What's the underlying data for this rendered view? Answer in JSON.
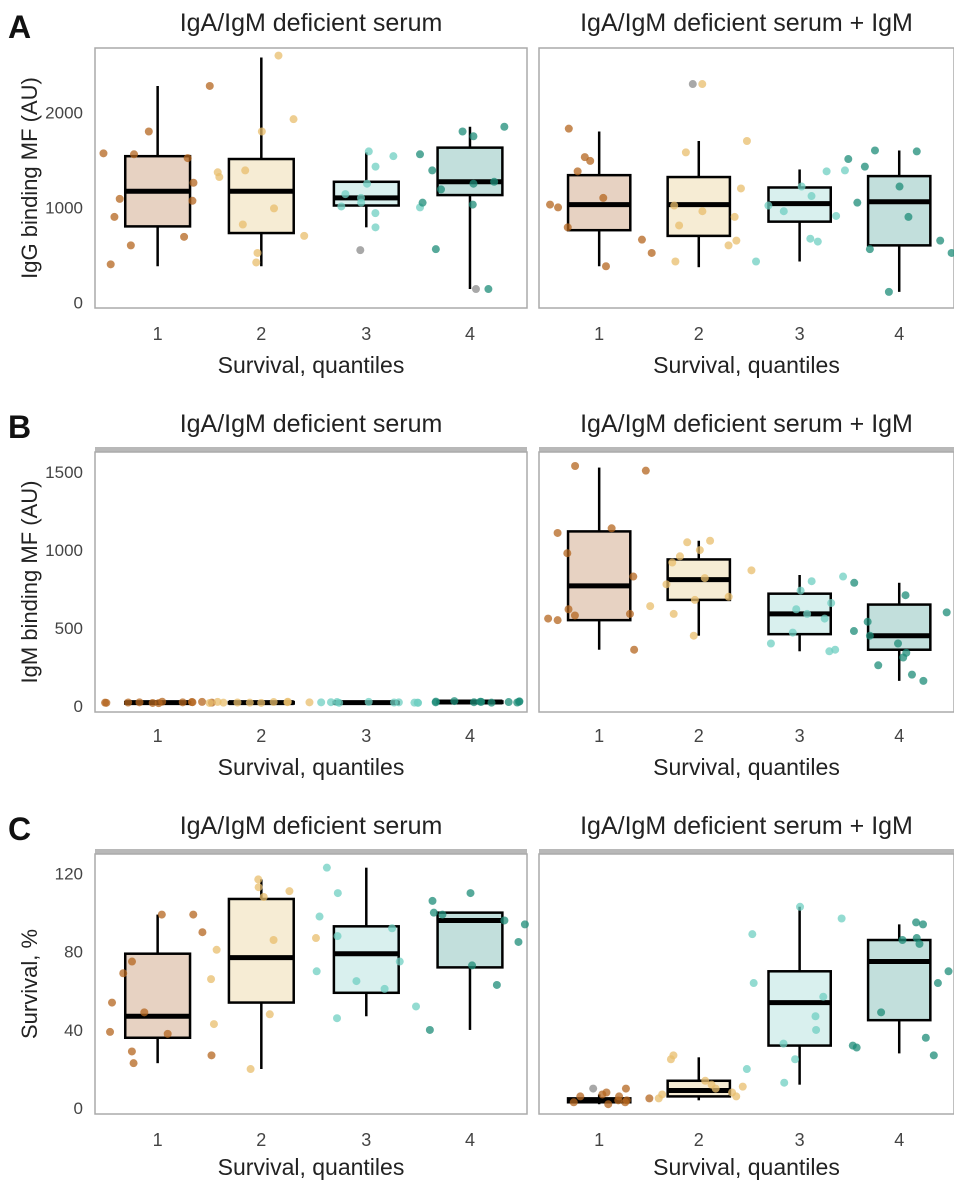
{
  "colors": {
    "q1_fill": "#e7d2c2",
    "q1_point": "#b4651f",
    "q2_fill": "#f6ecd4",
    "q2_point": "#e8bd6c",
    "q3_fill": "#d9f0ee",
    "q3_point": "#6fcfc2",
    "q4_fill": "#c2dfdc",
    "q4_point": "#1e8c78",
    "outlier": "#999999",
    "frame": "#aaaaaa",
    "strip": "#b8b8b8"
  },
  "chart_data": [
    {
      "panel": "A",
      "facet": "IgA/IgM deficient serum",
      "type": "box",
      "categories": [
        "1",
        "2",
        "3",
        "4"
      ],
      "xlabel": "Survival, quantiles",
      "ylabel": "IgG binding MF (AU)",
      "ylim": [
        -60,
        2680
      ],
      "yticks": [
        0,
        1000,
        2000
      ],
      "boxes": [
        {
          "q1": 800,
          "median": 1170,
          "q3": 1540,
          "lo": 380,
          "hi": 2280
        },
        {
          "q1": 730,
          "median": 1170,
          "q3": 1510,
          "lo": 380,
          "hi": 2580
        },
        {
          "q1": 1020,
          "median": 1100,
          "q3": 1270,
          "lo": 790,
          "hi": 1580
        },
        {
          "q1": 1130,
          "median": 1270,
          "q3": 1630,
          "lo": 140,
          "hi": 1850
        }
      ],
      "points": [
        [
          1,
          690
        ],
        [
          1,
          400
        ],
        [
          1,
          1800
        ],
        [
          1,
          1260
        ],
        [
          1,
          1090
        ],
        [
          1,
          1070
        ],
        [
          1,
          900
        ],
        [
          1,
          2280
        ],
        [
          1,
          1560
        ],
        [
          1,
          1520
        ],
        [
          1,
          1570
        ],
        [
          1,
          600
        ],
        [
          2,
          2600
        ],
        [
          2,
          1800
        ],
        [
          2,
          1370
        ],
        [
          2,
          1390
        ],
        [
          2,
          990
        ],
        [
          2,
          420
        ],
        [
          2,
          520
        ],
        [
          2,
          1320
        ],
        [
          2,
          1930
        ],
        [
          2,
          700
        ],
        [
          2,
          820
        ],
        [
          3,
          1250
        ],
        [
          3,
          1430
        ],
        [
          3,
          1010
        ],
        [
          3,
          790
        ],
        [
          3,
          1590
        ],
        [
          3,
          1050
        ],
        [
          3,
          1140
        ],
        [
          3,
          1000
        ],
        [
          3,
          1540
        ],
        [
          3,
          940
        ],
        [
          3,
          1100
        ],
        [
          4,
          1800
        ],
        [
          4,
          1850
        ],
        [
          4,
          1560
        ],
        [
          4,
          1390
        ],
        [
          4,
          1250
        ],
        [
          4,
          1270
        ],
        [
          4,
          560
        ],
        [
          4,
          1030
        ],
        [
          4,
          1050
        ],
        [
          4,
          1750
        ],
        [
          4,
          1190
        ],
        [
          4,
          140
        ]
      ],
      "outliers": [
        [
          3,
          550
        ],
        [
          4,
          140
        ]
      ]
    },
    {
      "panel": "",
      "facet": "IgA/IgM deficient serum + IgM",
      "type": "box",
      "categories": [
        "1",
        "2",
        "3",
        "4"
      ],
      "xlabel": "Survival, quantiles",
      "ylabel": "",
      "ylim": [
        -60,
        2680
      ],
      "yticks": [],
      "boxes": [
        {
          "q1": 760,
          "median": 1030,
          "q3": 1340,
          "lo": 380,
          "hi": 1800
        },
        {
          "q1": 700,
          "median": 1030,
          "q3": 1320,
          "lo": 370,
          "hi": 1700
        },
        {
          "q1": 850,
          "median": 1040,
          "q3": 1210,
          "lo": 430,
          "hi": 1400
        },
        {
          "q1": 600,
          "median": 1060,
          "q3": 1330,
          "lo": 110,
          "hi": 1600
        }
      ],
      "points": [
        [
          1,
          380
        ],
        [
          1,
          1530
        ],
        [
          1,
          1380
        ],
        [
          1,
          1100
        ],
        [
          1,
          1000
        ],
        [
          1,
          1030
        ],
        [
          1,
          660
        ],
        [
          1,
          790
        ],
        [
          1,
          1490
        ],
        [
          1,
          520
        ],
        [
          1,
          1830
        ],
        [
          2,
          2300
        ],
        [
          2,
          1700
        ],
        [
          2,
          1200
        ],
        [
          2,
          1020
        ],
        [
          2,
          960
        ],
        [
          2,
          900
        ],
        [
          2,
          810
        ],
        [
          2,
          650
        ],
        [
          2,
          430
        ],
        [
          2,
          600
        ],
        [
          2,
          1580
        ],
        [
          3,
          1380
        ],
        [
          3,
          1390
        ],
        [
          3,
          1220
        ],
        [
          3,
          1120
        ],
        [
          3,
          960
        ],
        [
          3,
          910
        ],
        [
          3,
          670
        ],
        [
          3,
          430
        ],
        [
          3,
          640
        ],
        [
          3,
          1020
        ],
        [
          4,
          1600
        ],
        [
          4,
          1590
        ],
        [
          4,
          1510
        ],
        [
          4,
          1220
        ],
        [
          4,
          1050
        ],
        [
          4,
          900
        ],
        [
          4,
          560
        ],
        [
          4,
          520
        ],
        [
          4,
          110
        ],
        [
          4,
          650
        ],
        [
          4,
          1430
        ]
      ],
      "outliers": [
        [
          2,
          2300
        ]
      ]
    },
    {
      "panel": "B",
      "facet": "IgA/IgM deficient serum",
      "type": "box",
      "categories": [
        "1",
        "2",
        "3",
        "4"
      ],
      "xlabel": "Survival, quantiles",
      "ylabel": "IgM binding MF (AU)",
      "ylim": [
        -40,
        1630
      ],
      "yticks": [
        0,
        500,
        1000,
        1500
      ],
      "boxes": [
        {
          "q1": 18,
          "median": 20,
          "q3": 24,
          "lo": 10,
          "hi": 30
        },
        {
          "q1": 18,
          "median": 20,
          "q3": 24,
          "lo": 10,
          "hi": 30
        },
        {
          "q1": 18,
          "median": 20,
          "q3": 24,
          "lo": 10,
          "hi": 30
        },
        {
          "q1": 20,
          "median": 24,
          "q3": 28,
          "lo": 12,
          "hi": 34
        }
      ],
      "points": [
        [
          1,
          18
        ],
        [
          1,
          22
        ],
        [
          1,
          25
        ],
        [
          1,
          19
        ],
        [
          1,
          24
        ],
        [
          1,
          20
        ],
        [
          1,
          26
        ],
        [
          1,
          21
        ],
        [
          1,
          17
        ],
        [
          1,
          23
        ],
        [
          1,
          22
        ],
        [
          1,
          20
        ],
        [
          2,
          19
        ],
        [
          2,
          23
        ],
        [
          2,
          20
        ],
        [
          2,
          24
        ],
        [
          2,
          22
        ],
        [
          2,
          21
        ],
        [
          2,
          26
        ],
        [
          2,
          18
        ],
        [
          2,
          25
        ],
        [
          2,
          20
        ],
        [
          3,
          20
        ],
        [
          3,
          22
        ],
        [
          3,
          19
        ],
        [
          3,
          24
        ],
        [
          3,
          21
        ],
        [
          3,
          25
        ],
        [
          3,
          20
        ],
        [
          3,
          23
        ],
        [
          3,
          22
        ],
        [
          3,
          19
        ],
        [
          4,
          22
        ],
        [
          4,
          26
        ],
        [
          4,
          24
        ],
        [
          4,
          28
        ],
        [
          4,
          21
        ],
        [
          4,
          25
        ],
        [
          4,
          27
        ],
        [
          4,
          23
        ],
        [
          4,
          20
        ],
        [
          4,
          30
        ],
        [
          4,
          26
        ]
      ],
      "outliers": []
    },
    {
      "panel": "",
      "facet": "IgA/IgM deficient serum + IgM",
      "type": "box",
      "categories": [
        "1",
        "2",
        "3",
        "4"
      ],
      "xlabel": "Survival, quantiles",
      "ylabel": "",
      "ylim": [
        -40,
        1630
      ],
      "yticks": [],
      "boxes": [
        {
          "q1": 550,
          "median": 770,
          "q3": 1120,
          "lo": 360,
          "hi": 1530
        },
        {
          "q1": 680,
          "median": 810,
          "q3": 940,
          "lo": 450,
          "hi": 1060
        },
        {
          "q1": 460,
          "median": 590,
          "q3": 720,
          "lo": 350,
          "hi": 840
        },
        {
          "q1": 360,
          "median": 450,
          "q3": 650,
          "lo": 160,
          "hi": 790
        }
      ],
      "points": [
        [
          1,
          1540
        ],
        [
          1,
          1510
        ],
        [
          1,
          1140
        ],
        [
          1,
          1110
        ],
        [
          1,
          980
        ],
        [
          1,
          830
        ],
        [
          1,
          590
        ],
        [
          1,
          560
        ],
        [
          1,
          550
        ],
        [
          1,
          580
        ],
        [
          1,
          360
        ],
        [
          1,
          620
        ],
        [
          2,
          1050
        ],
        [
          2,
          1060
        ],
        [
          2,
          1000
        ],
        [
          2,
          960
        ],
        [
          2,
          870
        ],
        [
          2,
          820
        ],
        [
          2,
          780
        ],
        [
          2,
          700
        ],
        [
          2,
          680
        ],
        [
          2,
          640
        ],
        [
          2,
          590
        ],
        [
          2,
          450
        ],
        [
          2,
          920
        ],
        [
          3,
          830
        ],
        [
          3,
          800
        ],
        [
          3,
          740
        ],
        [
          3,
          660
        ],
        [
          3,
          620
        ],
        [
          3,
          590
        ],
        [
          3,
          560
        ],
        [
          3,
          470
        ],
        [
          3,
          400
        ],
        [
          3,
          360
        ],
        [
          3,
          350
        ],
        [
          4,
          790
        ],
        [
          4,
          710
        ],
        [
          4,
          600
        ],
        [
          4,
          540
        ],
        [
          4,
          480
        ],
        [
          4,
          450
        ],
        [
          4,
          400
        ],
        [
          4,
          340
        ],
        [
          4,
          310
        ],
        [
          4,
          260
        ],
        [
          4,
          200
        ],
        [
          4,
          160
        ]
      ],
      "outliers": []
    },
    {
      "panel": "C",
      "facet": "IgA/IgM deficient serum",
      "type": "box",
      "categories": [
        "1",
        "2",
        "3",
        "4"
      ],
      "xlabel": "Survival, quantiles",
      "ylabel": "Survival, %",
      "ylim": [
        -3,
        130
      ],
      "yticks": [
        0,
        40,
        80,
        120
      ],
      "boxes": [
        {
          "q1": 36,
          "median": 47,
          "q3": 79,
          "lo": 23,
          "hi": 99
        },
        {
          "q1": 54,
          "median": 77,
          "q3": 107,
          "lo": 20,
          "hi": 117
        },
        {
          "q1": 59,
          "median": 79,
          "q3": 93,
          "lo": 47,
          "hi": 123
        },
        {
          "q1": 72,
          "median": 96,
          "q3": 100,
          "lo": 40,
          "hi": 100
        }
      ],
      "points": [
        [
          1,
          99
        ],
        [
          1,
          99
        ],
        [
          1,
          90
        ],
        [
          1,
          75
        ],
        [
          1,
          69
        ],
        [
          1,
          54
        ],
        [
          1,
          49
        ],
        [
          1,
          39
        ],
        [
          1,
          38
        ],
        [
          1,
          29
        ],
        [
          1,
          27
        ],
        [
          1,
          23
        ],
        [
          2,
          117
        ],
        [
          2,
          113
        ],
        [
          2,
          111
        ],
        [
          2,
          108
        ],
        [
          2,
          87
        ],
        [
          2,
          86
        ],
        [
          2,
          81
        ],
        [
          2,
          66
        ],
        [
          2,
          48
        ],
        [
          2,
          43
        ],
        [
          2,
          20
        ],
        [
          3,
          123
        ],
        [
          3,
          110
        ],
        [
          3,
          98
        ],
        [
          3,
          92
        ],
        [
          3,
          88
        ],
        [
          3,
          75
        ],
        [
          3,
          70
        ],
        [
          3,
          65
        ],
        [
          3,
          61
        ],
        [
          3,
          52
        ],
        [
          3,
          46
        ],
        [
          4,
          110
        ],
        [
          4,
          106
        ],
        [
          4,
          100
        ],
        [
          4,
          99
        ],
        [
          4,
          96
        ],
        [
          4,
          94
        ],
        [
          4,
          85
        ],
        [
          4,
          73
        ],
        [
          4,
          63
        ],
        [
          4,
          40
        ]
      ],
      "outliers": []
    },
    {
      "panel": "",
      "facet": "IgA/IgM deficient serum + IgM",
      "type": "box",
      "categories": [
        "1",
        "2",
        "3",
        "4"
      ],
      "xlabel": "Survival, quantiles",
      "ylabel": "",
      "ylim": [
        -3,
        130
      ],
      "yticks": [],
      "boxes": [
        {
          "q1": 3,
          "median": 4,
          "q3": 5,
          "lo": 2,
          "hi": 7
        },
        {
          "q1": 6,
          "median": 9,
          "q3": 14,
          "lo": 4,
          "hi": 26
        },
        {
          "q1": 32,
          "median": 54,
          "q3": 70,
          "lo": 12,
          "hi": 103
        },
        {
          "q1": 45,
          "median": 75,
          "q3": 86,
          "lo": 28,
          "hi": 94
        }
      ],
      "points": [
        [
          1,
          10
        ],
        [
          1,
          8
        ],
        [
          1,
          6
        ],
        [
          1,
          5
        ],
        [
          1,
          4
        ],
        [
          1,
          3
        ],
        [
          1,
          3
        ],
        [
          1,
          2
        ],
        [
          1,
          6
        ],
        [
          1,
          4
        ],
        [
          1,
          7
        ],
        [
          2,
          27
        ],
        [
          2,
          25
        ],
        [
          2,
          14
        ],
        [
          2,
          12
        ],
        [
          2,
          10
        ],
        [
          2,
          8
        ],
        [
          2,
          7
        ],
        [
          2,
          6
        ],
        [
          2,
          5
        ],
        [
          2,
          11
        ],
        [
          3,
          103
        ],
        [
          3,
          97
        ],
        [
          3,
          89
        ],
        [
          3,
          64
        ],
        [
          3,
          57
        ],
        [
          3,
          47
        ],
        [
          3,
          40
        ],
        [
          3,
          33
        ],
        [
          3,
          25
        ],
        [
          3,
          20
        ],
        [
          3,
          13
        ],
        [
          4,
          95
        ],
        [
          4,
          94
        ],
        [
          4,
          87
        ],
        [
          4,
          86
        ],
        [
          4,
          84
        ],
        [
          4,
          70
        ],
        [
          4,
          64
        ],
        [
          4,
          49
        ],
        [
          4,
          36
        ],
        [
          4,
          32
        ],
        [
          4,
          31
        ],
        [
          4,
          27
        ]
      ],
      "outliers": [
        [
          1,
          10
        ]
      ]
    }
  ]
}
